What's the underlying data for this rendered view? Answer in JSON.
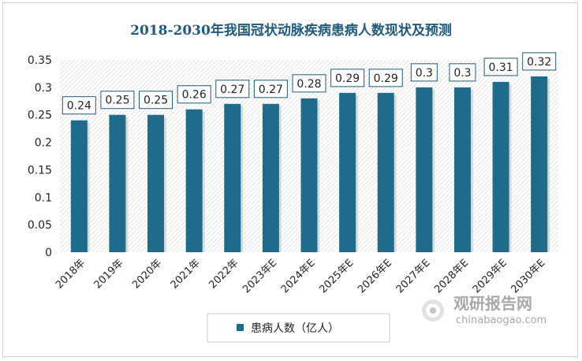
{
  "chart_data": {
    "type": "bar",
    "title": "2018-2030年我国冠状动脉疾病患病人数现状及预测",
    "categories": [
      "2018年",
      "2019年",
      "2020年",
      "2021年",
      "2022年",
      "2023年E",
      "2024年E",
      "2025年E",
      "2026年E",
      "2027年E",
      "2028年E",
      "2029年E",
      "2030年E"
    ],
    "series": [
      {
        "name": "患病人数（亿人）",
        "values": [
          0.24,
          0.25,
          0.25,
          0.26,
          0.27,
          0.27,
          0.28,
          0.29,
          0.29,
          0.3,
          0.3,
          0.31,
          0.32
        ],
        "labels": [
          "0.24",
          "0.25",
          "0.25",
          "0.26",
          "0.27",
          "0.27",
          "0.28",
          "0.29",
          "0.29",
          "0.3",
          "0.3",
          "0.31",
          "0.32"
        ]
      }
    ],
    "yticks": [
      "0",
      "0.05",
      "0.1",
      "0.15",
      "0.2",
      "0.25",
      "0.3",
      "0.35"
    ],
    "ylim": [
      0,
      0.35
    ],
    "xlabel": "",
    "ylabel": "",
    "grid": false,
    "legend_position": "bottom",
    "colors": {
      "bar": "#1e6b8c",
      "title": "#1f5a7a",
      "plot_hatch": "#e3e3e3"
    }
  },
  "watermark": {
    "text_cn": "观研报告网",
    "text_en": "chinabaogao.com"
  }
}
